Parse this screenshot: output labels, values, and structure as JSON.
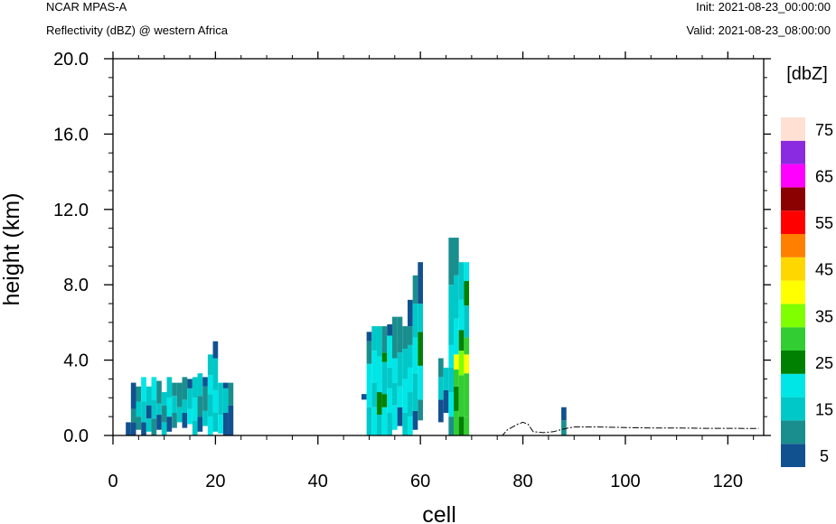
{
  "header": {
    "model": "NCAR MPAS-A",
    "field": "Reflectivity (dBZ) @ western Africa",
    "init": "Init: 2021-08-23_00:00:00",
    "valid": "Valid: 2021-08-23_08:00:00"
  },
  "colors": {
    "background": "#ffffff",
    "axis": "#000000",
    "colorbar": [
      "#125190",
      "#1a8e8e",
      "#00c8c8",
      "#00e6e6",
      "#008000",
      "#32cd32",
      "#80ff00",
      "#ffff00",
      "#ffd700",
      "#ff8000",
      "#ff0000",
      "#8b0000",
      "#ff00ff",
      "#8a2be2",
      "#ffe0d2"
    ]
  },
  "chart_data": {
    "type": "heatmap",
    "title": "Reflectivity (dBZ) @ western Africa",
    "xlabel": "cell",
    "ylabel": "height (km)",
    "xlim": [
      0,
      127
    ],
    "ylim": [
      0,
      20
    ],
    "x_ticks": [
      0,
      20,
      40,
      60,
      80,
      100,
      120
    ],
    "x_tick_labels": [
      "0",
      "20",
      "40",
      "60",
      "80",
      "100",
      "120"
    ],
    "y_ticks": [
      0,
      4,
      8,
      12,
      16,
      20
    ],
    "y_tick_labels": [
      "0.0",
      "4.0",
      "8.0",
      "12.0",
      "16.0",
      "20.0"
    ],
    "colorbar": {
      "unit_label": "[dbZ]",
      "levels": [
        5,
        10,
        15,
        20,
        25,
        30,
        35,
        40,
        45,
        50,
        55,
        60,
        65,
        70,
        75
      ],
      "tick_labels": [
        "5",
        "15",
        "25",
        "35",
        "45",
        "55",
        "65",
        "75"
      ]
    },
    "cell_height_km": 0.35,
    "columns": [
      {
        "x": 3,
        "cells": [
          [
            0.0,
            0.7,
            5
          ]
        ]
      },
      {
        "x": 4,
        "cells": [
          [
            0.0,
            0.7,
            5
          ],
          [
            0.7,
            1.4,
            10
          ],
          [
            1.4,
            2.8,
            5
          ]
        ]
      },
      {
        "x": 5,
        "cells": [
          [
            0.3,
            1.0,
            10
          ],
          [
            1.0,
            1.8,
            15
          ],
          [
            1.8,
            2.6,
            10
          ]
        ]
      },
      {
        "x": 6,
        "cells": [
          [
            0.0,
            0.7,
            5
          ],
          [
            0.7,
            1.8,
            15
          ],
          [
            1.8,
            3.1,
            20
          ]
        ]
      },
      {
        "x": 7,
        "cells": [
          [
            0.2,
            0.9,
            15
          ],
          [
            0.9,
            1.6,
            5
          ],
          [
            1.6,
            2.6,
            15
          ]
        ]
      },
      {
        "x": 8,
        "cells": [
          [
            0.0,
            0.9,
            10
          ],
          [
            0.9,
            1.9,
            15
          ],
          [
            1.9,
            3.1,
            20
          ]
        ]
      },
      {
        "x": 9,
        "cells": [
          [
            0.3,
            1.1,
            5
          ],
          [
            1.1,
            1.7,
            15
          ],
          [
            1.7,
            2.9,
            10
          ]
        ]
      },
      {
        "x": 10,
        "cells": [
          [
            0.0,
            0.7,
            15
          ],
          [
            0.7,
            1.6,
            10
          ],
          [
            1.6,
            2.3,
            15
          ]
        ]
      },
      {
        "x": 11,
        "cells": [
          [
            0.2,
            1.0,
            5
          ],
          [
            1.0,
            2.0,
            20
          ],
          [
            2.0,
            3.1,
            15
          ]
        ]
      },
      {
        "x": 12,
        "cells": [
          [
            0.4,
            1.2,
            10
          ],
          [
            1.2,
            2.1,
            15
          ],
          [
            2.1,
            2.8,
            10
          ]
        ]
      },
      {
        "x": 13,
        "cells": [
          [
            0.7,
            1.5,
            15
          ],
          [
            1.5,
            2.8,
            10
          ]
        ]
      },
      {
        "x": 14,
        "cells": [
          [
            0.4,
            1.2,
            5
          ],
          [
            1.2,
            1.9,
            15
          ],
          [
            1.9,
            3.1,
            10
          ]
        ]
      },
      {
        "x": 15,
        "cells": [
          [
            0.6,
            1.4,
            20
          ],
          [
            1.4,
            2.5,
            15
          ],
          [
            2.5,
            3.0,
            5
          ]
        ]
      },
      {
        "x": 16,
        "cells": [
          [
            0.0,
            0.8,
            15
          ],
          [
            0.8,
            2.0,
            20
          ],
          [
            2.0,
            3.1,
            15
          ]
        ]
      },
      {
        "x": 17,
        "cells": [
          [
            0.2,
            1.0,
            5
          ],
          [
            1.0,
            2.1,
            10
          ],
          [
            2.1,
            3.3,
            15
          ]
        ]
      },
      {
        "x": 18,
        "cells": [
          [
            0.5,
            1.3,
            15
          ],
          [
            1.3,
            2.6,
            10
          ],
          [
            2.6,
            3.1,
            5
          ]
        ]
      },
      {
        "x": 19,
        "cells": [
          [
            0.0,
            1.0,
            20
          ],
          [
            1.0,
            2.2,
            15
          ],
          [
            2.2,
            3.2,
            20
          ],
          [
            3.2,
            4.3,
            15
          ]
        ]
      },
      {
        "x": 20,
        "cells": [
          [
            0.2,
            1.2,
            15
          ],
          [
            1.2,
            2.4,
            20
          ],
          [
            2.4,
            4.1,
            15
          ],
          [
            4.1,
            5.0,
            5
          ]
        ]
      },
      {
        "x": 21,
        "cells": [
          [
            0.1,
            1.1,
            20
          ],
          [
            1.1,
            2.8,
            15
          ]
        ]
      },
      {
        "x": 22,
        "cells": [
          [
            0.0,
            1.2,
            5
          ],
          [
            1.2,
            2.5,
            15
          ],
          [
            2.5,
            2.8,
            5
          ]
        ]
      },
      {
        "x": 23,
        "cells": [
          [
            0.0,
            1.6,
            5
          ],
          [
            1.6,
            2.8,
            10
          ]
        ]
      },
      {
        "x": 49,
        "cells": [
          [
            1.9,
            2.2,
            5
          ]
        ]
      },
      {
        "x": 50,
        "cells": [
          [
            0.0,
            1.5,
            15
          ],
          [
            1.5,
            3.8,
            20
          ],
          [
            3.8,
            5.0,
            10
          ],
          [
            5.0,
            5.5,
            5
          ]
        ]
      },
      {
        "x": 51,
        "cells": [
          [
            0.0,
            1.5,
            20
          ],
          [
            1.5,
            2.8,
            15
          ],
          [
            2.8,
            4.5,
            20
          ],
          [
            4.5,
            5.8,
            15
          ]
        ]
      },
      {
        "x": 52,
        "cells": [
          [
            0.0,
            1.1,
            15
          ],
          [
            1.1,
            2.3,
            25
          ],
          [
            2.3,
            4.2,
            20
          ],
          [
            4.2,
            5.8,
            15
          ]
        ]
      },
      {
        "x": 53,
        "cells": [
          [
            0.0,
            1.5,
            20
          ],
          [
            1.5,
            2.2,
            25
          ],
          [
            2.2,
            3.9,
            15
          ],
          [
            3.9,
            4.4,
            25
          ],
          [
            4.4,
            5.8,
            10
          ]
        ]
      },
      {
        "x": 54,
        "cells": [
          [
            0.0,
            1.2,
            15
          ],
          [
            1.2,
            2.5,
            20
          ],
          [
            2.5,
            3.6,
            15
          ],
          [
            3.6,
            5.3,
            20
          ],
          [
            5.3,
            5.9,
            5
          ]
        ]
      },
      {
        "x": 55,
        "cells": [
          [
            0.3,
            1.6,
            20
          ],
          [
            1.6,
            2.8,
            15
          ],
          [
            2.8,
            4.1,
            20
          ],
          [
            4.1,
            6.3,
            10
          ]
        ]
      },
      {
        "x": 56,
        "cells": [
          [
            0.5,
            1.5,
            5
          ],
          [
            1.5,
            2.6,
            20
          ],
          [
            2.6,
            4.4,
            15
          ],
          [
            4.4,
            6.3,
            10
          ]
        ]
      },
      {
        "x": 57,
        "cells": [
          [
            0.0,
            1.2,
            15
          ],
          [
            1.2,
            3.0,
            20
          ],
          [
            3.0,
            4.6,
            15
          ],
          [
            4.6,
            5.8,
            10
          ]
        ]
      },
      {
        "x": 58,
        "cells": [
          [
            0.0,
            1.0,
            20
          ],
          [
            1.0,
            2.3,
            15
          ],
          [
            2.3,
            3.6,
            20
          ],
          [
            3.6,
            4.8,
            15
          ],
          [
            4.8,
            5.8,
            10
          ],
          [
            5.8,
            7.2,
            5
          ]
        ]
      },
      {
        "x": 59,
        "cells": [
          [
            0.3,
            1.3,
            5
          ],
          [
            1.3,
            3.3,
            15
          ],
          [
            3.3,
            5.2,
            20
          ],
          [
            5.2,
            7.0,
            15
          ],
          [
            7.0,
            8.5,
            10
          ]
        ]
      },
      {
        "x": 60,
        "cells": [
          [
            0.8,
            1.9,
            10
          ],
          [
            1.9,
            3.7,
            20
          ],
          [
            3.7,
            5.5,
            25
          ],
          [
            5.5,
            7.0,
            15
          ],
          [
            7.0,
            9.2,
            5
          ]
        ]
      },
      {
        "x": 64,
        "cells": [
          [
            0.7,
            1.9,
            5
          ],
          [
            1.9,
            3.1,
            15
          ],
          [
            3.1,
            4.1,
            10
          ]
        ]
      },
      {
        "x": 65,
        "cells": [
          [
            1.2,
            2.4,
            5
          ],
          [
            2.4,
            3.6,
            15
          ]
        ]
      },
      {
        "x": 66,
        "cells": [
          [
            0.0,
            1.0,
            10
          ],
          [
            1.0,
            2.3,
            20
          ],
          [
            2.3,
            3.6,
            15
          ],
          [
            3.6,
            4.8,
            20
          ],
          [
            4.8,
            8.0,
            15
          ],
          [
            8.0,
            10.5,
            10
          ]
        ]
      },
      {
        "x": 67,
        "cells": [
          [
            0.0,
            1.3,
            30
          ],
          [
            1.3,
            2.6,
            25
          ],
          [
            2.6,
            3.5,
            30
          ],
          [
            3.5,
            4.3,
            40
          ],
          [
            4.3,
            6.2,
            20
          ],
          [
            6.2,
            8.5,
            15
          ],
          [
            8.5,
            10.5,
            10
          ]
        ]
      },
      {
        "x": 68,
        "cells": [
          [
            0.0,
            1.0,
            25
          ],
          [
            1.0,
            3.2,
            30
          ],
          [
            3.2,
            4.5,
            35
          ],
          [
            4.5,
            5.6,
            25
          ],
          [
            5.6,
            7.2,
            20
          ],
          [
            7.2,
            9.2,
            15
          ]
        ]
      },
      {
        "x": 69,
        "cells": [
          [
            0.0,
            1.0,
            30
          ],
          [
            1.0,
            3.3,
            30
          ],
          [
            3.3,
            4.3,
            40
          ],
          [
            4.3,
            5.2,
            30
          ],
          [
            5.2,
            6.9,
            15
          ],
          [
            6.9,
            8.2,
            25
          ],
          [
            8.2,
            9.2,
            20
          ]
        ]
      },
      {
        "x": 88,
        "cells": [
          [
            0.8,
            1.5,
            5
          ],
          [
            0.0,
            0.8,
            10
          ]
        ]
      }
    ],
    "terrain": [
      [
        0,
        0.0
      ],
      [
        76,
        0.0
      ],
      [
        77,
        0.3
      ],
      [
        79,
        0.6
      ],
      [
        80,
        0.7
      ],
      [
        81,
        0.6
      ],
      [
        82,
        0.2
      ],
      [
        84,
        0.15
      ],
      [
        86,
        0.2
      ],
      [
        88,
        0.35
      ],
      [
        90,
        0.45
      ],
      [
        95,
        0.45
      ],
      [
        100,
        0.42
      ],
      [
        105,
        0.4
      ],
      [
        110,
        0.4
      ],
      [
        115,
        0.38
      ],
      [
        120,
        0.38
      ],
      [
        126,
        0.37
      ]
    ]
  }
}
